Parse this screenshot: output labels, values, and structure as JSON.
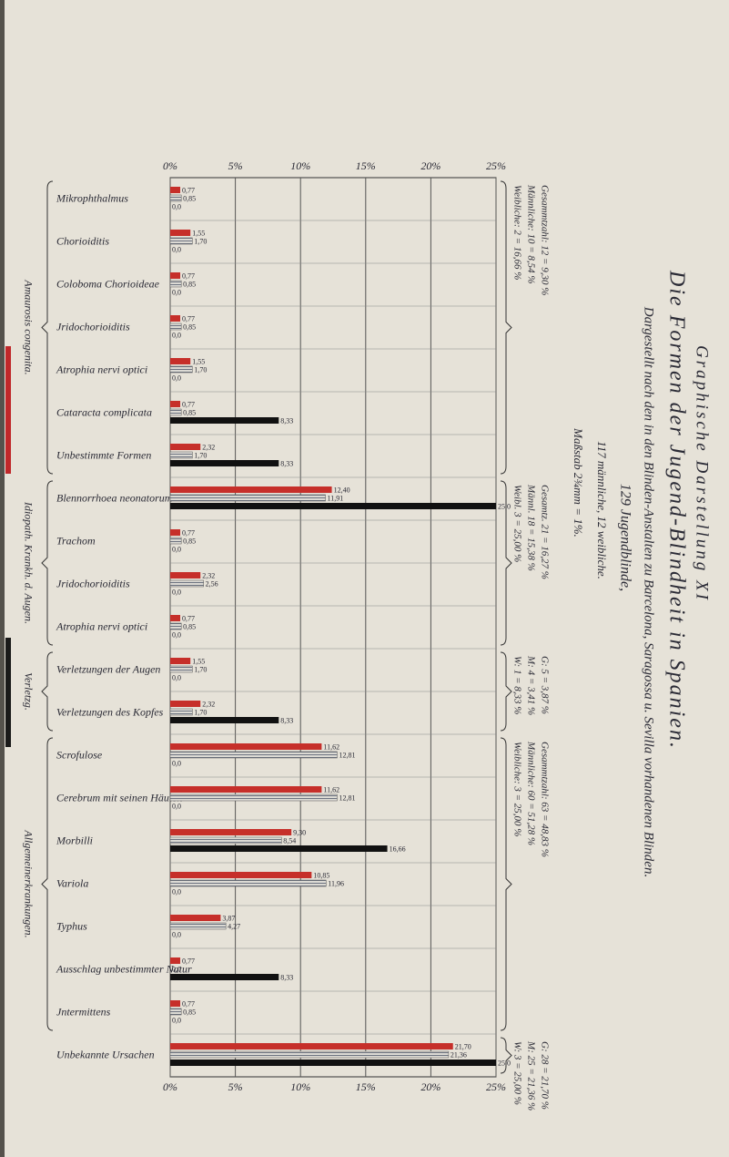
{
  "chart_data": {
    "type": "bar",
    "orientation": "horizontal",
    "title": "Graphische Darstellung XI",
    "subtitle": "Die Formen der Jugend-Blindheit in Spanien.",
    "notes": [
      "Dargestellt nach den in den Blinden-Anstalten zu Barcelona, Saragossa u. Sevilla vorhandenen Blinden.",
      "129 Jugendblinde,",
      "117 männliche, 12 weibliche.",
      "Maßstab 2¾mm = 1%."
    ],
    "categories": [
      "Mikrophthalmus",
      "Chorioiditis",
      "Coloboma Chorioideae",
      "Jridochorioiditis",
      "Atrophia nervi optici",
      "Cataracta complicata",
      "Unbestimmte Formen",
      "Blennorrhoea neonatorum",
      "Trachom",
      "Jridochorioiditis",
      "Atrophia nervi optici",
      "Verletzungen der Augen",
      "Verletzungen des Kopfes",
      "Scrofulose",
      "Cerebrum mit seinen Häuten",
      "Morbilli",
      "Variola",
      "Typhus",
      "Ausschlag unbestimmter Natur",
      "Jntermittens",
      "Unbekannte Ursachen"
    ],
    "groups": [
      "Amaurosis congenita.",
      "Idiopath. Krankh. d. Augen.",
      "Verletzg.",
      "Allgemeinerkrankungen."
    ],
    "group_notes": [
      [
        "Gesammtzahl: 12 = 9,30 %",
        "Männliche: 10 = 8,54 %",
        "Weibliche: 2 = 16,66 %"
      ],
      [
        "Gesamtz. 21 = 16,27 %",
        "Männl. 18 = 15,38 %",
        "Weibl. 3 = 25,00 %"
      ],
      [
        "G: 5 = 3,87 %",
        "M: 4 = 3,41 %",
        "W: 1 = 8,33 %"
      ],
      [
        "Gesammtzahl: 63 = 48,83 %",
        "Männliche: 60 = 51,28 %",
        "Weibliche: 3 = 25,00 %"
      ],
      [
        "G: 28 = 21,70 %",
        "M: 25 = 21,36 %",
        "W: 3 = 25,00 %"
      ]
    ],
    "series": [
      {
        "color": "#c62f2a",
        "pattern": "solid",
        "values": [
          0.77,
          1.55,
          0.77,
          0.77,
          1.55,
          0.77,
          2.32,
          12.4,
          0.77,
          2.32,
          0.77,
          1.55,
          2.32,
          11.62,
          11.62,
          9.3,
          10.85,
          3.87,
          0.77,
          0.77,
          21.7
        ],
        "value_labels": [
          "0,77",
          "1,55",
          "0,77",
          "0,77",
          "1,55",
          "0,77",
          "2,32",
          "12,40",
          "0,77",
          "2,32",
          "0,77",
          "1,55",
          "2,32",
          "11,62",
          "11,62",
          "9,30",
          "10,85",
          "3,87",
          "0,77",
          "0,77",
          "21,70"
        ]
      },
      {
        "color": "#8a8f99",
        "pattern": "striped",
        "values": [
          0.85,
          1.7,
          0.85,
          0.85,
          1.7,
          0.85,
          1.7,
          11.91,
          0.85,
          2.56,
          0.85,
          1.7,
          1.7,
          12.81,
          12.81,
          8.54,
          11.96,
          4.27,
          0.0,
          0.85,
          21.36
        ],
        "value_labels": [
          "0,85",
          "1,70",
          "0,85",
          "0,85",
          "1,70",
          "0,85",
          "1,70",
          "11,91",
          "0,85",
          "2,56",
          "0,85",
          "1,70",
          "1,70",
          "12,81",
          "12,81",
          "8,54",
          "11,96",
          "4,27",
          "0,0",
          "0,85",
          "21,36"
        ]
      },
      {
        "color": "#111111",
        "pattern": "solid",
        "values": [
          0.0,
          0.0,
          0.0,
          0.0,
          0.0,
          8.33,
          8.33,
          25.0,
          0.0,
          0.0,
          0.0,
          0.0,
          8.33,
          0.0,
          0.0,
          16.66,
          0.0,
          0.0,
          8.33,
          0.0,
          25.0
        ],
        "value_labels": [
          "0,0",
          "0,0",
          "0,0",
          "0,0",
          "0,0",
          "8,33",
          "8,33",
          "25,0",
          "0,0",
          "0,0",
          "0,0",
          "0,0",
          "8,33",
          "0,0",
          "0,0",
          "16,66",
          "0,0",
          "0,0",
          "8,33",
          "0,0",
          "25,0"
        ]
      }
    ],
    "xlim": [
      0,
      25
    ],
    "xticks": [
      {
        "value": 0,
        "label": "0%"
      },
      {
        "value": 5,
        "label": "5%"
      },
      {
        "value": 10,
        "label": "10%"
      },
      {
        "value": 15,
        "label": "15%"
      },
      {
        "value": 20,
        "label": "20%"
      },
      {
        "value": 25,
        "label": "25%"
      }
    ],
    "grid": true
  }
}
